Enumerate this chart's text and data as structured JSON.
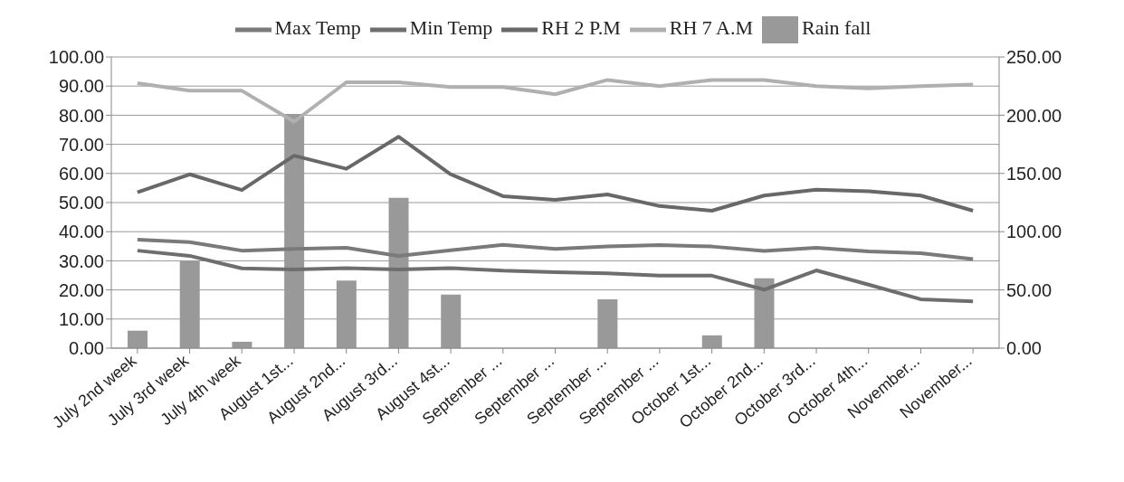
{
  "chart_data": {
    "type": "line",
    "categories": [
      "July 2nd week",
      "July 3rd week",
      "July 4th week",
      "August 1st...",
      "August 2nd...",
      "August 3rd...",
      "August 4st...",
      "September ...",
      "September ...",
      "September ...",
      "September ...",
      "October 1st...",
      "October 2nd...",
      "October 3rd...",
      "October 4th...",
      "November...",
      "November..."
    ],
    "series": [
      {
        "name": "Rain fall",
        "type": "bar",
        "axis": "y2",
        "color": "#999999",
        "values": [
          15,
          75,
          5.5,
          201,
          58,
          129,
          46,
          0,
          0,
          42,
          0,
          11,
          60,
          0,
          0,
          0,
          0
        ]
      },
      {
        "name": "Max Temp",
        "color": "#7a7a7a",
        "values": [
          37.3,
          36.4,
          33.5,
          34.1,
          34.5,
          31.7,
          33.6,
          35.5,
          34.1,
          34.9,
          35.4,
          34.9,
          33.4,
          34.5,
          33.2,
          32.6,
          30.6
        ]
      },
      {
        "name": "Min Temp",
        "color": "#6e6e6e",
        "values": [
          33.5,
          31.7,
          27.4,
          27,
          27.5,
          27,
          27.5,
          26.6,
          26.1,
          25.7,
          24.9,
          24.9,
          20.1,
          26.7,
          21.8,
          16.8,
          16.1
        ]
      },
      {
        "name": "RH 7 A.M",
        "color": "#b0b0b0",
        "values": [
          91,
          88.4,
          88.4,
          77.8,
          91.3,
          91.3,
          89.7,
          89.7,
          87.2,
          92.1,
          90,
          92.1,
          92.1,
          90,
          89.2,
          90,
          90.5
        ]
      },
      {
        "name": "RH 2 P.M",
        "color": "#686868",
        "values": [
          53.5,
          59.7,
          54.3,
          66.1,
          61.6,
          72.6,
          59.7,
          52.2,
          50.9,
          52.8,
          48.8,
          47.2,
          52.4,
          54.4,
          53.9,
          52.4,
          47.2
        ]
      }
    ],
    "ylim": [
      0,
      100
    ],
    "yticks": [
      {
        "value": 0,
        "label": "0.00"
      },
      {
        "value": 10,
        "label": "10.00"
      },
      {
        "value": 20,
        "label": "20.00"
      },
      {
        "value": 30,
        "label": "30.00"
      },
      {
        "value": 40,
        "label": "40.00"
      },
      {
        "value": 50,
        "label": "50.00"
      },
      {
        "value": 60,
        "label": "60.00"
      },
      {
        "value": 70,
        "label": "70.00"
      },
      {
        "value": 80,
        "label": "80.00"
      },
      {
        "value": 90,
        "label": "90.00"
      },
      {
        "value": 100,
        "label": "100.00"
      }
    ],
    "y2lim": [
      0,
      250
    ],
    "y2ticks": [
      {
        "value": 0,
        "label": "0.00"
      },
      {
        "value": 50,
        "label": "50.00"
      },
      {
        "value": 100,
        "label": "100.00"
      },
      {
        "value": 150,
        "label": "150.00"
      },
      {
        "value": 200,
        "label": "200.00"
      },
      {
        "value": 250,
        "label": "250.00"
      }
    ],
    "grid": "y",
    "legend": "top",
    "marker": "none",
    "line_style": "solid"
  }
}
